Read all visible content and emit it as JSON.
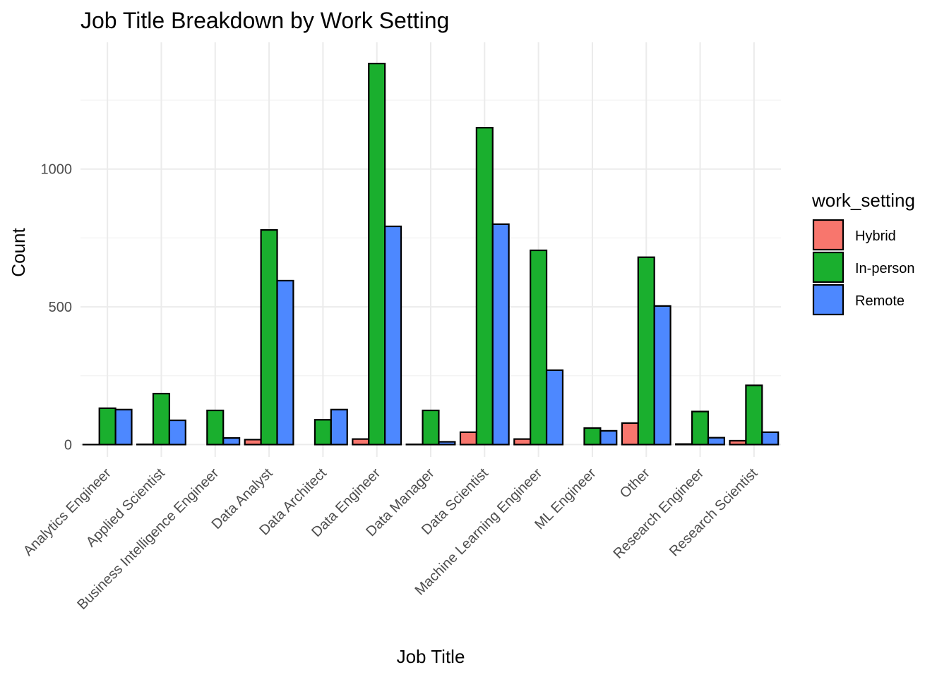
{
  "chart_data": {
    "type": "bar",
    "title": "Job Title Breakdown by Work Setting",
    "xlabel": "Job Title",
    "ylabel": "Count",
    "categories": [
      "Analytics Engineer",
      "Applied Scientist",
      "Business Intelligence Engineer",
      "Data Analyst",
      "Data Architect",
      "Data Engineer",
      "Data Manager",
      "Data Scientist",
      "Machine Learning Engineer",
      "ML Engineer",
      "Other",
      "Research Engineer",
      "Research Scientist"
    ],
    "legend_title": "work_setting",
    "legend_position": "right",
    "series": [
      {
        "name": "Hybrid",
        "color": "#F8766D",
        "values": [
          0,
          1,
          null,
          18,
          null,
          20,
          1,
          45,
          20,
          null,
          78,
          2,
          14
        ]
      },
      {
        "name": "In-person",
        "color": "#1AAF2E",
        "values": [
          132,
          185,
          124,
          779,
          90,
          1383,
          124,
          1150,
          705,
          60,
          680,
          120,
          215
        ]
      },
      {
        "name": "Remote",
        "color": "#4D88FF",
        "values": [
          127,
          88,
          24,
          595,
          127,
          792,
          10,
          800,
          270,
          50,
          503,
          25,
          45
        ]
      }
    ],
    "yticks": [
      0,
      500,
      1000
    ],
    "ylim": [
      -45,
      1460
    ],
    "grid": true
  }
}
